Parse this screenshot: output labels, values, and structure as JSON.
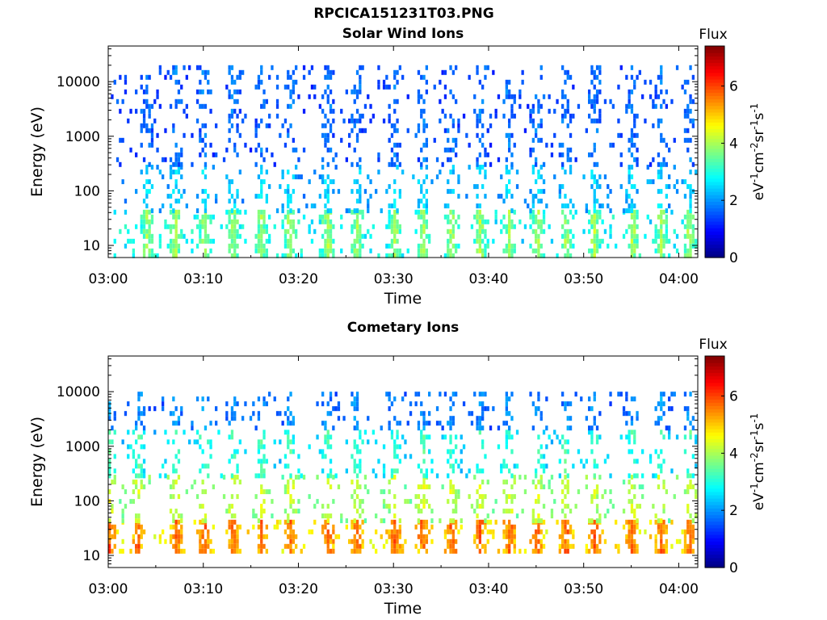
{
  "figure": {
    "title": "RPCICA151231T03.PNG"
  },
  "colorbar": {
    "title": "Flux",
    "unit_label": "eV",
    "unit_parts": [
      {
        "t": "eV",
        "sup": false
      },
      {
        "t": "-1",
        "sup": true
      },
      {
        "t": "cm",
        "sup": false
      },
      {
        "t": "-2",
        "sup": true
      },
      {
        "t": "sr",
        "sup": false
      },
      {
        "t": "-1",
        "sup": true
      },
      {
        "t": "s",
        "sup": false
      },
      {
        "t": "-1",
        "sup": true
      }
    ],
    "ticks": [
      "0",
      "2",
      "4",
      "6"
    ],
    "range": [
      0,
      7.4
    ],
    "colormap": "jet"
  },
  "chart_data": [
    {
      "type": "heatmap",
      "title": "Solar Wind Ions",
      "xlabel": "Time",
      "ylabel": "Energy (eV)",
      "x_tick_labels": [
        "03:00",
        "03:10",
        "03:20",
        "03:30",
        "03:40",
        "03:50",
        "04:00"
      ],
      "y_tick_labels": [
        "10",
        "100",
        "1000",
        "10000"
      ],
      "y_scale": "log",
      "xlim": [
        "03:00",
        "04:02"
      ],
      "ylim": [
        6,
        45000
      ],
      "z_range": [
        0,
        7.4
      ],
      "series": [
        {
          "energy_range": [
            6,
            45
          ],
          "flux_typical": 2.8,
          "flux_max": 4.5
        },
        {
          "energy_range": [
            45,
            300
          ],
          "flux_typical": 2.2,
          "flux_max": 3.0
        },
        {
          "energy_range": [
            300,
            20000
          ],
          "flux_typical": 1.6,
          "flux_max": 2.2
        }
      ],
      "bursts": [
        "03:04",
        "03:07",
        "03:10",
        "03:13",
        "03:16",
        "03:19",
        "03:23",
        "03:26",
        "03:30",
        "03:33",
        "03:36",
        "03:39",
        "03:42",
        "03:45",
        "03:48",
        "03:51",
        "03:55",
        "03:58",
        "04:01"
      ]
    },
    {
      "type": "heatmap",
      "title": "Cometary Ions",
      "xlabel": "Time",
      "ylabel": "Energy (eV)",
      "x_tick_labels": [
        "03:00",
        "03:10",
        "03:20",
        "03:30",
        "03:40",
        "03:50",
        "04:00"
      ],
      "y_tick_labels": [
        "10",
        "100",
        "1000",
        "10000"
      ],
      "y_scale": "log",
      "xlim": [
        "03:00",
        "04:02"
      ],
      "ylim": [
        6,
        45000
      ],
      "z_range": [
        0,
        7.4
      ],
      "series": [
        {
          "energy_range": [
            12,
            45
          ],
          "flux_typical": 4.8,
          "flux_max": 6.3
        },
        {
          "energy_range": [
            45,
            300
          ],
          "flux_typical": 3.8,
          "flux_max": 4.8
        },
        {
          "energy_range": [
            300,
            2000
          ],
          "flux_typical": 2.6,
          "flux_max": 3.8
        },
        {
          "energy_range": [
            2000,
            10000
          ],
          "flux_typical": 1.8,
          "flux_max": 2.4
        }
      ],
      "bursts": [
        "03:00",
        "03:03",
        "03:07",
        "03:10",
        "03:13",
        "03:16",
        "03:19",
        "03:23",
        "03:26",
        "03:30",
        "03:33",
        "03:36",
        "03:39",
        "03:42",
        "03:45",
        "03:48",
        "03:51",
        "03:55",
        "03:58",
        "04:01"
      ]
    }
  ]
}
